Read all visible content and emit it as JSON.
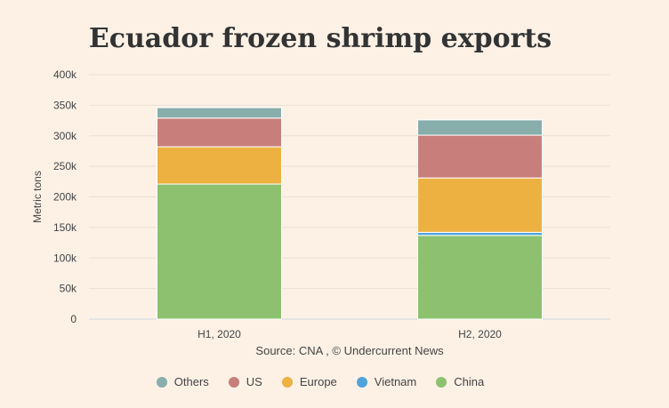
{
  "chart_data": {
    "type": "bar",
    "stacked": true,
    "title": "Ecuador frozen shrimp exports",
    "ylabel": "Metric tons",
    "xlabel": "",
    "source": "Source: CNA , © Undercurrent News",
    "categories": [
      "H1, 2020",
      "H2, 2020"
    ],
    "ylim": [
      0,
      400000
    ],
    "yticks": [
      "0",
      "50k",
      "100k",
      "150k",
      "200k",
      "250k",
      "300k",
      "350k",
      "400k"
    ],
    "grid": true,
    "legend_position": "bottom",
    "series": [
      {
        "name": "China",
        "color": "#8dc16f",
        "values": [
          221000,
          137000
        ]
      },
      {
        "name": "Vietnam",
        "color": "#4fa3db",
        "values": [
          0,
          5000
        ]
      },
      {
        "name": "Europe",
        "color": "#edb142",
        "values": [
          61000,
          89000
        ]
      },
      {
        "name": "US",
        "color": "#c87f7b",
        "values": [
          47000,
          70000
        ]
      },
      {
        "name": "Others",
        "color": "#88aeac",
        "values": [
          17000,
          25000
        ]
      }
    ],
    "legend_order": [
      "Others",
      "US",
      "Europe",
      "Vietnam",
      "China"
    ]
  }
}
